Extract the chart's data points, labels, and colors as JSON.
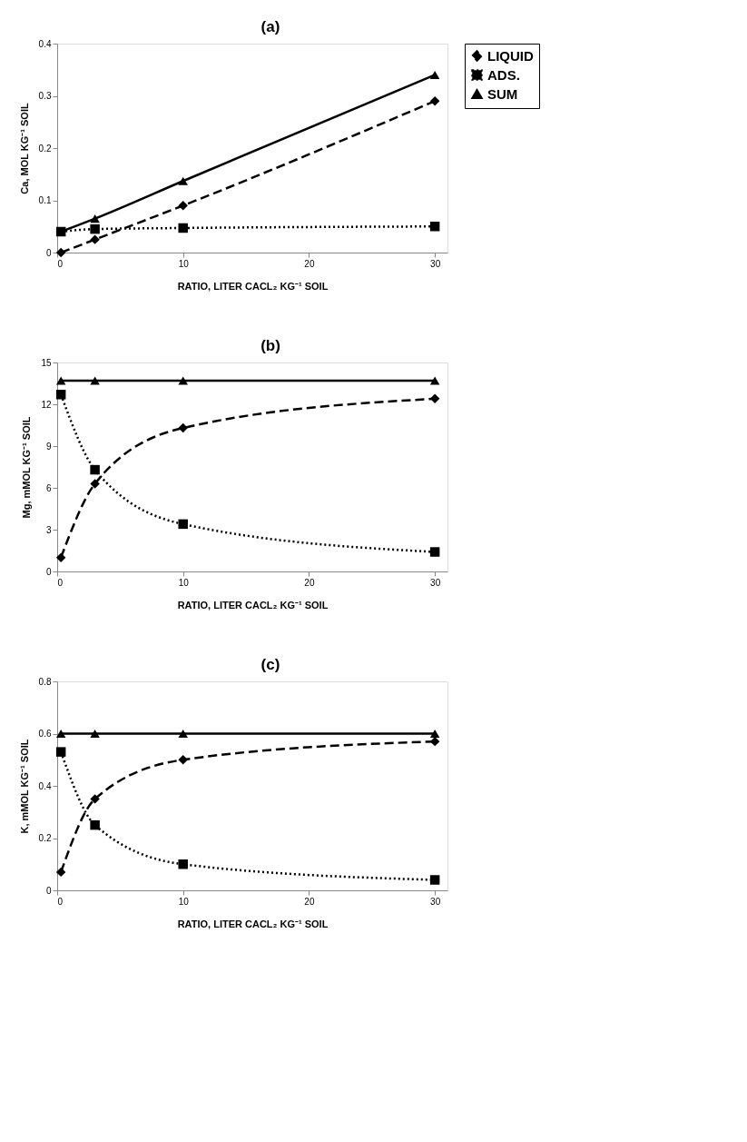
{
  "chart_data": [
    {
      "type": "line",
      "title": "(a)",
      "xlabel": "RATIO, LITER CACL₂ KG⁻¹ SOIL",
      "ylabel": "Ca,  MOL KG⁻¹ SOIL",
      "x": [
        0.3,
        3,
        10,
        30
      ],
      "xlim": [
        0,
        31
      ],
      "xticks": [
        0,
        10,
        20,
        30
      ],
      "ylim": [
        0,
        0.4
      ],
      "yticks": [
        0,
        0.1,
        0.2,
        0.3,
        0.4
      ],
      "legend": "right",
      "grid": false,
      "series": [
        {
          "name": "LIQUID",
          "color": "#000000",
          "marker": "diamond",
          "line_style": "dashed",
          "values": [
            0.0,
            0.025,
            0.09,
            0.29
          ]
        },
        {
          "name": "ADS.",
          "color": "#000000",
          "marker": "square",
          "line_style": "dotted",
          "values": [
            0.04,
            0.045,
            0.047,
            0.05
          ]
        },
        {
          "name": "SUM",
          "color": "#000000",
          "marker": "triangle",
          "line_style": "solid",
          "values": [
            0.04,
            0.065,
            0.137,
            0.34
          ]
        }
      ]
    },
    {
      "type": "line",
      "title": "(b)",
      "xlabel": "RATIO, LITER CACL₂  KG⁻¹ SOIL",
      "ylabel": "Mg, mMOL KG⁻¹ SOIL",
      "x": [
        0.3,
        3,
        10,
        30
      ],
      "xlim": [
        0,
        31
      ],
      "xticks": [
        0,
        10,
        20,
        30
      ],
      "ylim": [
        0,
        15
      ],
      "yticks": [
        0,
        3,
        6,
        9,
        12,
        15
      ],
      "legend": "right",
      "grid": false,
      "series": [
        {
          "name": "LIQUID",
          "color": "#000000",
          "marker": "diamond",
          "line_style": "dashed",
          "values": [
            1.0,
            6.3,
            10.3,
            12.4
          ]
        },
        {
          "name": "ADS.",
          "color": "#000000",
          "marker": "square",
          "line_style": "dotted",
          "values": [
            12.7,
            7.3,
            3.4,
            1.4
          ]
        },
        {
          "name": "SUM",
          "color": "#000000",
          "marker": "triangle",
          "line_style": "solid",
          "values": [
            13.7,
            13.7,
            13.7,
            13.7
          ]
        }
      ]
    },
    {
      "type": "line",
      "title": "(c)",
      "xlabel": "RATIO, LITER CACL₂ KG⁻¹ SOIL",
      "ylabel": "K, mMOL KG⁻¹ SOIL",
      "x": [
        0.3,
        3,
        10,
        30
      ],
      "xlim": [
        0,
        31
      ],
      "xticks": [
        0,
        10,
        20,
        30
      ],
      "ylim": [
        0,
        0.8
      ],
      "yticks": [
        0,
        0.2,
        0.4,
        0.6,
        0.8
      ],
      "legend": "right",
      "grid": false,
      "series": [
        {
          "name": "LIQUID",
          "color": "#000000",
          "marker": "diamond",
          "line_style": "dashed",
          "values": [
            0.07,
            0.35,
            0.5,
            0.57
          ]
        },
        {
          "name": "ADS.",
          "color": "#000000",
          "marker": "square",
          "line_style": "dotted",
          "values": [
            0.53,
            0.25,
            0.1,
            0.04
          ]
        },
        {
          "name": "SUM",
          "color": "#000000",
          "marker": "triangle",
          "line_style": "solid",
          "values": [
            0.6,
            0.6,
            0.6,
            0.6
          ]
        }
      ]
    }
  ]
}
